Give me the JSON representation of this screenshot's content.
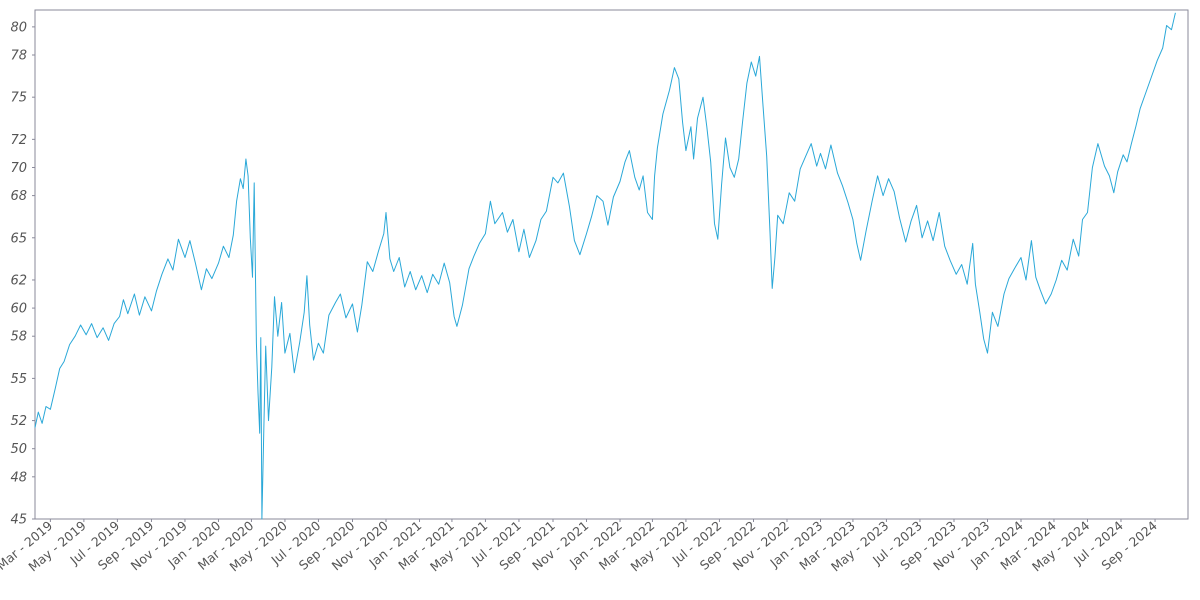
{
  "chart_data": {
    "type": "line",
    "title": "",
    "xlabel": "",
    "ylabel": "",
    "x_range": [
      "2019-02-01",
      "2024-10-31"
    ],
    "ylim": [
      45,
      81.2
    ],
    "y_ticks": [
      45,
      48,
      50,
      52,
      55,
      58,
      60,
      62,
      65,
      68,
      70,
      72,
      75,
      78,
      80
    ],
    "y_tick_labels": [
      "45",
      "48",
      "50",
      "52",
      "55",
      "58",
      "60",
      "62",
      "65",
      "68",
      "70",
      "72",
      "75",
      "78",
      "80"
    ],
    "x_ticks": [
      {
        "date": "2019-03-01",
        "label": "Mar - 2019"
      },
      {
        "date": "2019-05-01",
        "label": "May - 2019"
      },
      {
        "date": "2019-07-01",
        "label": "Jul - 2019"
      },
      {
        "date": "2019-09-01",
        "label": "Sep - 2019"
      },
      {
        "date": "2019-11-01",
        "label": "Nov - 2019"
      },
      {
        "date": "2020-01-01",
        "label": "Jan - 2020"
      },
      {
        "date": "2020-03-01",
        "label": "Mar - 2020"
      },
      {
        "date": "2020-05-01",
        "label": "May - 2020"
      },
      {
        "date": "2020-07-01",
        "label": "Jul - 2020"
      },
      {
        "date": "2020-09-01",
        "label": "Sep - 2020"
      },
      {
        "date": "2020-11-01",
        "label": "Nov - 2020"
      },
      {
        "date": "2021-01-01",
        "label": "Jan - 2021"
      },
      {
        "date": "2021-03-01",
        "label": "Mar - 2021"
      },
      {
        "date": "2021-05-01",
        "label": "May - 2021"
      },
      {
        "date": "2021-07-01",
        "label": "Jul - 2021"
      },
      {
        "date": "2021-09-01",
        "label": "Sep - 2021"
      },
      {
        "date": "2021-11-01",
        "label": "Nov - 2021"
      },
      {
        "date": "2022-01-01",
        "label": "Jan - 2022"
      },
      {
        "date": "2022-03-01",
        "label": "Mar - 2022"
      },
      {
        "date": "2022-05-01",
        "label": "May - 2022"
      },
      {
        "date": "2022-07-01",
        "label": "Jul - 2022"
      },
      {
        "date": "2022-09-01",
        "label": "Sep - 2022"
      },
      {
        "date": "2022-11-01",
        "label": "Nov - 2022"
      },
      {
        "date": "2023-01-01",
        "label": "Jan - 2023"
      },
      {
        "date": "2023-03-01",
        "label": "Mar - 2023"
      },
      {
        "date": "2023-05-01",
        "label": "May - 2023"
      },
      {
        "date": "2023-07-01",
        "label": "Jul - 2023"
      },
      {
        "date": "2023-09-01",
        "label": "Sep - 2023"
      },
      {
        "date": "2023-11-01",
        "label": "Nov - 2023"
      },
      {
        "date": "2024-01-01",
        "label": "Jan - 2024"
      },
      {
        "date": "2024-03-01",
        "label": "Mar - 2024"
      },
      {
        "date": "2024-05-01",
        "label": "May - 2024"
      },
      {
        "date": "2024-07-01",
        "label": "Jul - 2024"
      },
      {
        "date": "2024-09-01",
        "label": "Sep - 2024"
      }
    ],
    "grid": false,
    "legend": "none",
    "series": [
      {
        "color": "#2aa8d8",
        "points": [
          [
            "2019-02-01",
            51.5
          ],
          [
            "2019-02-07",
            52.6
          ],
          [
            "2019-02-14",
            51.8
          ],
          [
            "2019-02-21",
            53.0
          ],
          [
            "2019-03-01",
            52.8
          ],
          [
            "2019-03-10",
            54.3
          ],
          [
            "2019-03-18",
            55.7
          ],
          [
            "2019-03-26",
            56.2
          ],
          [
            "2019-04-05",
            57.4
          ],
          [
            "2019-04-15",
            58.0
          ],
          [
            "2019-04-25",
            58.8
          ],
          [
            "2019-05-05",
            58.1
          ],
          [
            "2019-05-15",
            58.9
          ],
          [
            "2019-05-25",
            57.9
          ],
          [
            "2019-06-05",
            58.6
          ],
          [
            "2019-06-15",
            57.7
          ],
          [
            "2019-06-25",
            58.9
          ],
          [
            "2019-07-05",
            59.4
          ],
          [
            "2019-07-12",
            60.6
          ],
          [
            "2019-07-20",
            59.6
          ],
          [
            "2019-08-01",
            61.0
          ],
          [
            "2019-08-10",
            59.5
          ],
          [
            "2019-08-20",
            60.8
          ],
          [
            "2019-09-01",
            59.8
          ],
          [
            "2019-09-10",
            61.2
          ],
          [
            "2019-09-20",
            62.4
          ],
          [
            "2019-10-01",
            63.5
          ],
          [
            "2019-10-10",
            62.7
          ],
          [
            "2019-10-20",
            64.9
          ],
          [
            "2019-11-01",
            63.6
          ],
          [
            "2019-11-10",
            64.8
          ],
          [
            "2019-11-20",
            63.2
          ],
          [
            "2019-12-01",
            61.3
          ],
          [
            "2019-12-10",
            62.8
          ],
          [
            "2019-12-20",
            62.1
          ],
          [
            "2020-01-01",
            63.2
          ],
          [
            "2020-01-10",
            64.4
          ],
          [
            "2020-01-20",
            63.6
          ],
          [
            "2020-01-28",
            65.2
          ],
          [
            "2020-02-03",
            67.6
          ],
          [
            "2020-02-10",
            69.2
          ],
          [
            "2020-02-15",
            68.5
          ],
          [
            "2020-02-20",
            70.6
          ],
          [
            "2020-02-24",
            69.4
          ],
          [
            "2020-02-28",
            65.0
          ],
          [
            "2020-03-03",
            62.2
          ],
          [
            "2020-03-06",
            68.9
          ],
          [
            "2020-03-10",
            57.5
          ],
          [
            "2020-03-13",
            54.0
          ],
          [
            "2020-03-16",
            51.1
          ],
          [
            "2020-03-18",
            57.9
          ],
          [
            "2020-03-20",
            45.0
          ],
          [
            "2020-03-24",
            52.3
          ],
          [
            "2020-03-27",
            57.3
          ],
          [
            "2020-04-01",
            52.0
          ],
          [
            "2020-04-07",
            55.8
          ],
          [
            "2020-04-12",
            60.8
          ],
          [
            "2020-04-18",
            58.0
          ],
          [
            "2020-04-25",
            60.4
          ],
          [
            "2020-05-01",
            56.8
          ],
          [
            "2020-05-10",
            58.2
          ],
          [
            "2020-05-18",
            55.4
          ],
          [
            "2020-05-28",
            57.6
          ],
          [
            "2020-06-05",
            59.7
          ],
          [
            "2020-06-10",
            62.3
          ],
          [
            "2020-06-15",
            58.8
          ],
          [
            "2020-06-22",
            56.3
          ],
          [
            "2020-07-01",
            57.5
          ],
          [
            "2020-07-10",
            56.8
          ],
          [
            "2020-07-20",
            59.5
          ],
          [
            "2020-08-01",
            60.4
          ],
          [
            "2020-08-10",
            61.0
          ],
          [
            "2020-08-20",
            59.3
          ],
          [
            "2020-09-01",
            60.3
          ],
          [
            "2020-09-10",
            58.3
          ],
          [
            "2020-09-18",
            60.2
          ],
          [
            "2020-09-28",
            63.3
          ],
          [
            "2020-10-08",
            62.6
          ],
          [
            "2020-10-18",
            64.0
          ],
          [
            "2020-10-28",
            65.3
          ],
          [
            "2020-11-01",
            66.8
          ],
          [
            "2020-11-08",
            63.5
          ],
          [
            "2020-11-15",
            62.6
          ],
          [
            "2020-11-25",
            63.6
          ],
          [
            "2020-12-05",
            61.5
          ],
          [
            "2020-12-15",
            62.6
          ],
          [
            "2020-12-25",
            61.3
          ],
          [
            "2021-01-05",
            62.3
          ],
          [
            "2021-01-15",
            61.1
          ],
          [
            "2021-01-25",
            62.4
          ],
          [
            "2021-02-05",
            61.7
          ],
          [
            "2021-02-15",
            63.2
          ],
          [
            "2021-02-25",
            61.8
          ],
          [
            "2021-03-05",
            59.4
          ],
          [
            "2021-03-10",
            58.7
          ],
          [
            "2021-03-20",
            60.2
          ],
          [
            "2021-04-01",
            62.8
          ],
          [
            "2021-04-10",
            63.7
          ],
          [
            "2021-04-20",
            64.6
          ],
          [
            "2021-05-01",
            65.3
          ],
          [
            "2021-05-10",
            67.6
          ],
          [
            "2021-05-18",
            66.0
          ],
          [
            "2021-06-01",
            66.8
          ],
          [
            "2021-06-10",
            65.4
          ],
          [
            "2021-06-20",
            66.3
          ],
          [
            "2021-07-01",
            64.0
          ],
          [
            "2021-07-10",
            65.6
          ],
          [
            "2021-07-20",
            63.6
          ],
          [
            "2021-08-01",
            64.8
          ],
          [
            "2021-08-10",
            66.3
          ],
          [
            "2021-08-20",
            66.9
          ],
          [
            "2021-09-01",
            69.3
          ],
          [
            "2021-09-10",
            68.9
          ],
          [
            "2021-09-20",
            69.6
          ],
          [
            "2021-10-01",
            67.2
          ],
          [
            "2021-10-10",
            64.8
          ],
          [
            "2021-10-20",
            63.8
          ],
          [
            "2021-11-01",
            65.3
          ],
          [
            "2021-11-10",
            66.5
          ],
          [
            "2021-11-20",
            68.0
          ],
          [
            "2021-12-01",
            67.6
          ],
          [
            "2021-12-10",
            65.9
          ],
          [
            "2021-12-20",
            67.9
          ],
          [
            "2022-01-01",
            69.0
          ],
          [
            "2022-01-10",
            70.4
          ],
          [
            "2022-01-18",
            71.2
          ],
          [
            "2022-01-28",
            69.3
          ],
          [
            "2022-02-05",
            68.4
          ],
          [
            "2022-02-12",
            69.4
          ],
          [
            "2022-02-20",
            66.8
          ],
          [
            "2022-03-01",
            66.3
          ],
          [
            "2022-03-05",
            69.4
          ],
          [
            "2022-03-10",
            71.4
          ],
          [
            "2022-03-20",
            73.8
          ],
          [
            "2022-04-01",
            75.5
          ],
          [
            "2022-04-10",
            77.1
          ],
          [
            "2022-04-18",
            76.3
          ],
          [
            "2022-04-25",
            73.2
          ],
          [
            "2022-05-01",
            71.2
          ],
          [
            "2022-05-10",
            72.9
          ],
          [
            "2022-05-15",
            70.6
          ],
          [
            "2022-05-22",
            73.5
          ],
          [
            "2022-06-01",
            75.0
          ],
          [
            "2022-06-08",
            72.9
          ],
          [
            "2022-06-15",
            70.4
          ],
          [
            "2022-06-22",
            66.0
          ],
          [
            "2022-06-28",
            64.9
          ],
          [
            "2022-07-05",
            68.8
          ],
          [
            "2022-07-12",
            72.1
          ],
          [
            "2022-07-20",
            70.0
          ],
          [
            "2022-07-28",
            69.3
          ],
          [
            "2022-08-05",
            70.6
          ],
          [
            "2022-08-12",
            73.2
          ],
          [
            "2022-08-20",
            76.0
          ],
          [
            "2022-08-28",
            77.5
          ],
          [
            "2022-09-05",
            76.5
          ],
          [
            "2022-09-12",
            77.9
          ],
          [
            "2022-09-18",
            74.6
          ],
          [
            "2022-09-25",
            70.8
          ],
          [
            "2022-10-01",
            65.4
          ],
          [
            "2022-10-05",
            61.4
          ],
          [
            "2022-10-10",
            63.6
          ],
          [
            "2022-10-15",
            66.6
          ],
          [
            "2022-10-25",
            66.0
          ],
          [
            "2022-11-05",
            68.2
          ],
          [
            "2022-11-15",
            67.6
          ],
          [
            "2022-11-25",
            69.9
          ],
          [
            "2022-12-05",
            70.8
          ],
          [
            "2022-12-15",
            71.7
          ],
          [
            "2022-12-25",
            70.1
          ],
          [
            "2023-01-01",
            71.0
          ],
          [
            "2023-01-10",
            69.9
          ],
          [
            "2023-01-20",
            71.6
          ],
          [
            "2023-02-01",
            69.6
          ],
          [
            "2023-02-10",
            68.7
          ],
          [
            "2023-02-20",
            67.5
          ],
          [
            "2023-03-01",
            66.3
          ],
          [
            "2023-03-08",
            64.6
          ],
          [
            "2023-03-15",
            63.4
          ],
          [
            "2023-03-25",
            65.5
          ],
          [
            "2023-04-05",
            67.6
          ],
          [
            "2023-04-15",
            69.4
          ],
          [
            "2023-04-25",
            68.0
          ],
          [
            "2023-05-05",
            69.2
          ],
          [
            "2023-05-15",
            68.3
          ],
          [
            "2023-05-25",
            66.4
          ],
          [
            "2023-06-05",
            64.7
          ],
          [
            "2023-06-15",
            66.2
          ],
          [
            "2023-06-25",
            67.3
          ],
          [
            "2023-07-05",
            65.0
          ],
          [
            "2023-07-15",
            66.2
          ],
          [
            "2023-07-25",
            64.8
          ],
          [
            "2023-08-05",
            66.8
          ],
          [
            "2023-08-15",
            64.4
          ],
          [
            "2023-08-25",
            63.4
          ],
          [
            "2023-09-05",
            62.4
          ],
          [
            "2023-09-15",
            63.1
          ],
          [
            "2023-09-25",
            61.7
          ],
          [
            "2023-10-05",
            64.6
          ],
          [
            "2023-10-10",
            61.7
          ],
          [
            "2023-10-18",
            59.7
          ],
          [
            "2023-10-25",
            57.8
          ],
          [
            "2023-11-01",
            56.8
          ],
          [
            "2023-11-10",
            59.7
          ],
          [
            "2023-11-20",
            58.7
          ],
          [
            "2023-12-01",
            61.0
          ],
          [
            "2023-12-10",
            62.1
          ],
          [
            "2023-12-20",
            62.8
          ],
          [
            "2024-01-01",
            63.6
          ],
          [
            "2024-01-10",
            62.0
          ],
          [
            "2024-01-20",
            64.8
          ],
          [
            "2024-01-28",
            62.2
          ],
          [
            "2024-02-05",
            61.3
          ],
          [
            "2024-02-15",
            60.3
          ],
          [
            "2024-02-25",
            61.0
          ],
          [
            "2024-03-05",
            62.0
          ],
          [
            "2024-03-15",
            63.4
          ],
          [
            "2024-03-25",
            62.7
          ],
          [
            "2024-04-05",
            64.9
          ],
          [
            "2024-04-15",
            63.7
          ],
          [
            "2024-04-22",
            66.3
          ],
          [
            "2024-05-01",
            66.8
          ],
          [
            "2024-05-10",
            70.0
          ],
          [
            "2024-05-20",
            71.7
          ],
          [
            "2024-06-01",
            70.1
          ],
          [
            "2024-06-10",
            69.4
          ],
          [
            "2024-06-18",
            68.2
          ],
          [
            "2024-06-25",
            69.7
          ],
          [
            "2024-07-05",
            70.9
          ],
          [
            "2024-07-12",
            70.4
          ],
          [
            "2024-07-20",
            71.7
          ],
          [
            "2024-07-28",
            72.9
          ],
          [
            "2024-08-05",
            74.2
          ],
          [
            "2024-08-15",
            75.3
          ],
          [
            "2024-08-25",
            76.4
          ],
          [
            "2024-09-05",
            77.6
          ],
          [
            "2024-09-15",
            78.5
          ],
          [
            "2024-09-22",
            80.1
          ],
          [
            "2024-10-01",
            79.8
          ],
          [
            "2024-10-08",
            81.0
          ]
        ]
      }
    ]
  }
}
